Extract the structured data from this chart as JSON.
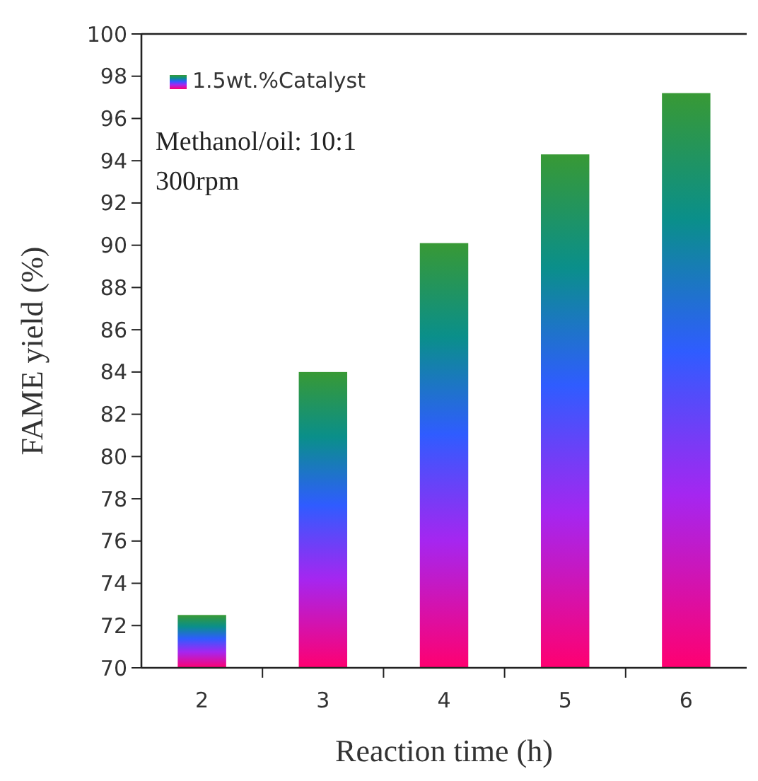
{
  "chart_data": {
    "type": "bar",
    "xlabel": "Reaction time (h)",
    "ylabel": "FAME yield (%)",
    "categories": [
      "2",
      "3",
      "4",
      "5",
      "6"
    ],
    "series": [
      {
        "name": "1.5wt.%Catalyst",
        "color": "#2f5cff",
        "values": [
          72.5,
          84,
          90.1,
          94.3,
          97.2
        ]
      }
    ],
    "ylim": [
      70,
      100
    ],
    "yticks": [
      70,
      72,
      74,
      76,
      78,
      80,
      82,
      84,
      86,
      88,
      90,
      92,
      94,
      96,
      98,
      100
    ],
    "legend": "top left",
    "grid": false,
    "annotations": [
      "Methanol/oil: 10:1",
      "300rpm"
    ]
  }
}
